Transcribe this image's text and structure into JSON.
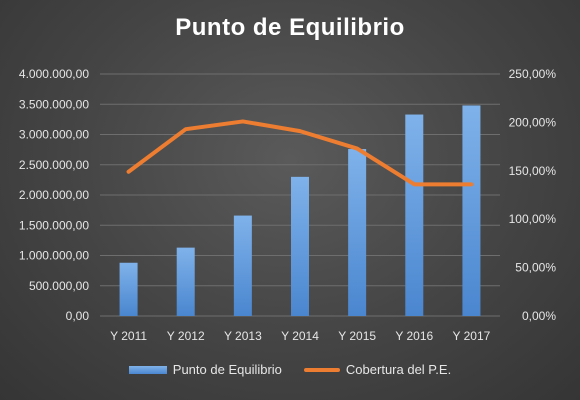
{
  "chart_data": {
    "type": "bar",
    "title": "Punto de Equilibrio",
    "categories": [
      "Y 2011",
      "Y 2012",
      "Y 2013",
      "Y 2014",
      "Y 2015",
      "Y 2016",
      "Y 2017"
    ],
    "series": [
      {
        "name": "Punto de Equilibrio",
        "type": "bar",
        "axis": "left",
        "color": "#5b9bd5",
        "values": [
          880000,
          1130000,
          1660000,
          2300000,
          2760000,
          3330000,
          3480000
        ]
      },
      {
        "name": "Cobertura del P.E.",
        "type": "line",
        "axis": "right",
        "color": "#ed7d31",
        "values": [
          1.49,
          1.93,
          2.01,
          1.91,
          1.73,
          1.36,
          1.36
        ]
      }
    ],
    "y_left": {
      "lim": [
        0,
        4000000
      ],
      "ticks": [
        "0,00",
        "500.000,00",
        "1.000.000,00",
        "1.500.000,00",
        "2.000.000,00",
        "2.500.000,00",
        "3.000.000,00",
        "3.500.000,00",
        "4.000.000,00"
      ]
    },
    "y_right": {
      "lim": [
        0,
        2.5
      ],
      "ticks": [
        "0,00%",
        "50,00%",
        "100,00%",
        "150,00%",
        "200,00%",
        "250,00%"
      ]
    },
    "grid": true,
    "legend_position": "bottom"
  }
}
